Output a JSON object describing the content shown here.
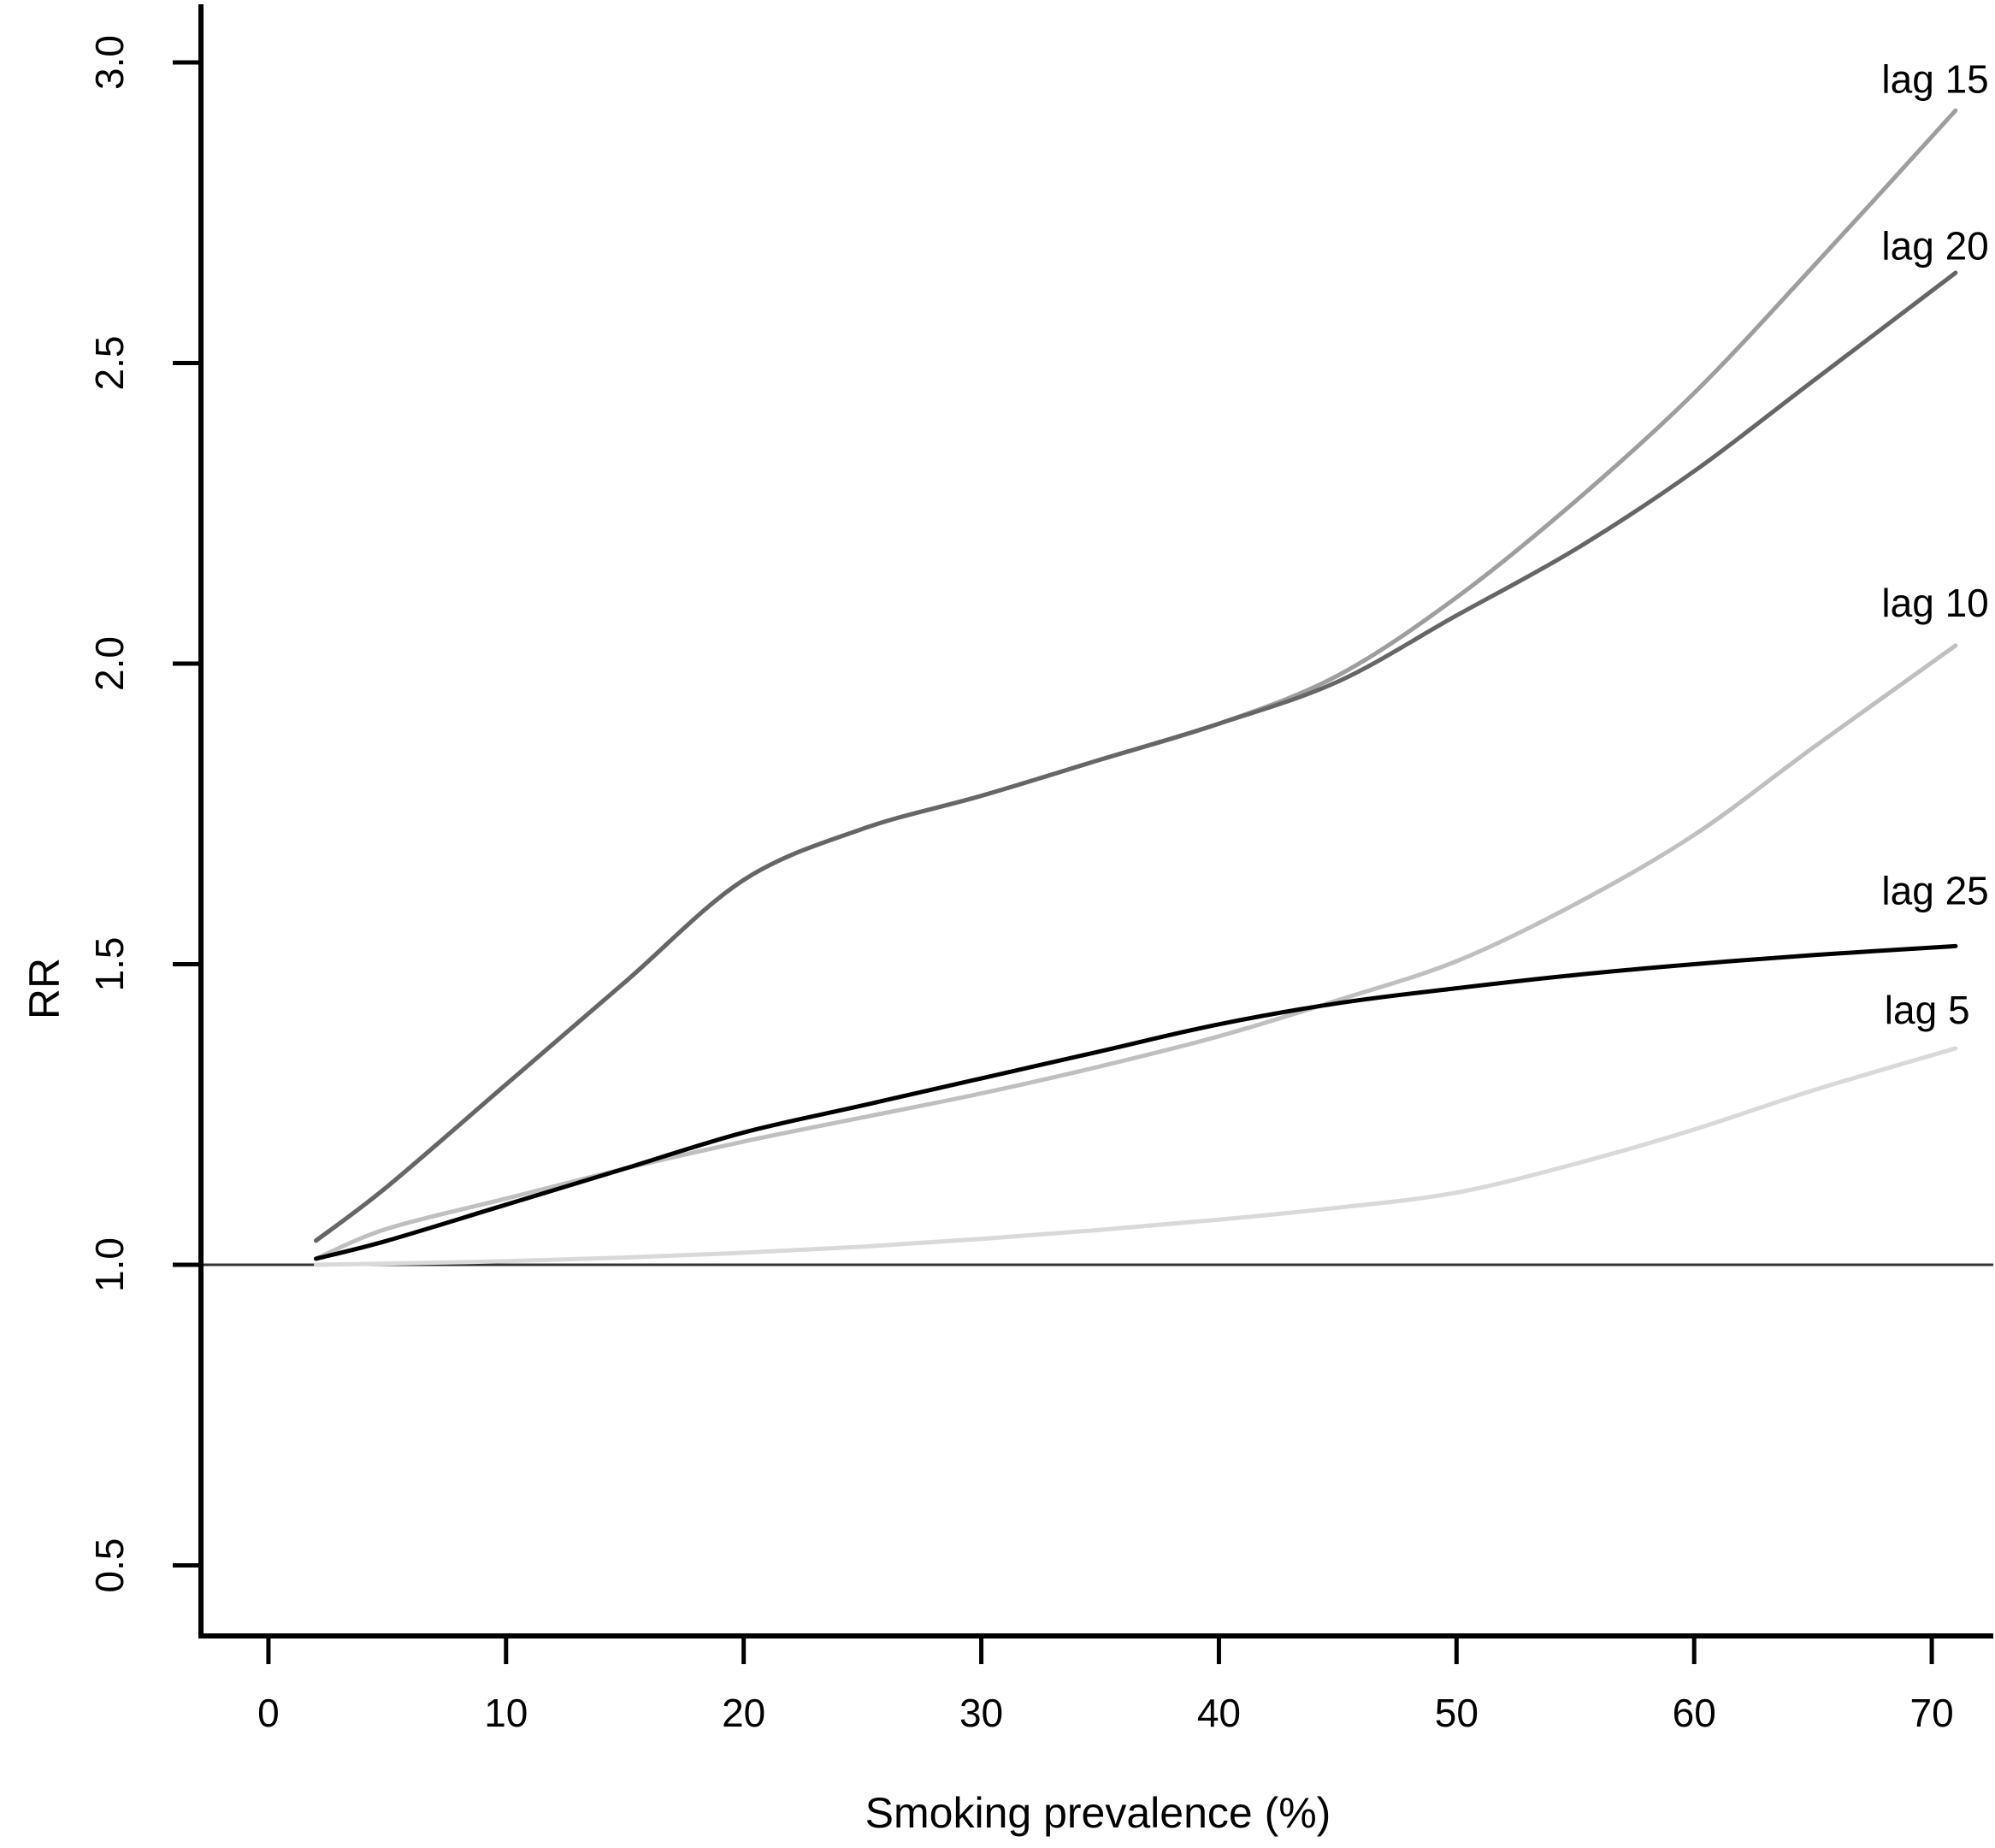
{
  "chart_data": {
    "type": "line",
    "title": "",
    "xlabel": "Smoking prevalence (%)",
    "ylabel": "RR",
    "xlim": [
      -2.84,
      72.66
    ],
    "ylim": [
      0.3826,
      3.1038
    ],
    "grid": false,
    "legend_position": "right-end-direct-labels",
    "x_tick_values": [
      0,
      10,
      20,
      30,
      40,
      50,
      60,
      70
    ],
    "x_tick_labels": [
      "0",
      "10",
      "20",
      "30",
      "40",
      "50",
      "60",
      "70"
    ],
    "y_tick_values": [
      0.5,
      1.0,
      1.5,
      2.0,
      2.5,
      3.0
    ],
    "y_tick_labels": [
      "0.5",
      "1.0",
      "1.5",
      "2.0",
      "2.5",
      "3.0"
    ],
    "reference_line_y": 1.0,
    "reference_line_color": "#333333",
    "axis_color": "#000000",
    "x": [
      2,
      5,
      10,
      15,
      20,
      25,
      30,
      35,
      40,
      45,
      50,
      55,
      60,
      65,
      71
    ],
    "series": [
      {
        "name": "lag 5",
        "color": "#d9d9d9",
        "values": [
          1.0,
          1.002,
          1.006,
          1.012,
          1.02,
          1.03,
          1.043,
          1.058,
          1.075,
          1.095,
          1.12,
          1.168,
          1.225,
          1.29,
          1.36
        ],
        "label": {
          "text": "lag 5",
          "x": 71.6,
          "y": 1.424
        }
      },
      {
        "name": "lag 10",
        "color": "#bfbfbf",
        "values": [
          1.01,
          1.06,
          1.11,
          1.16,
          1.205,
          1.245,
          1.285,
          1.33,
          1.38,
          1.44,
          1.505,
          1.6,
          1.715,
          1.86,
          2.03
        ],
        "label": {
          "text": "lag 10",
          "x": 72.4,
          "y": 2.101
        }
      },
      {
        "name": "lag 15",
        "color": "#9e9e9e",
        "values": [
          1.04,
          1.13,
          1.3,
          1.47,
          1.64,
          1.725,
          1.78,
          1.84,
          1.9,
          1.98,
          2.11,
          2.27,
          2.45,
          2.66,
          2.92
        ],
        "label": {
          "text": "lag 15",
          "x": 72.4,
          "y": 2.972
        }
      },
      {
        "name": "lag 20",
        "color": "#666666",
        "values": [
          1.04,
          1.13,
          1.3,
          1.47,
          1.64,
          1.725,
          1.78,
          1.84,
          1.9,
          1.97,
          2.08,
          2.19,
          2.32,
          2.47,
          2.65
        ],
        "label": {
          "text": "lag 20",
          "x": 72.4,
          "y": 2.695
        }
      },
      {
        "name": "lag 25",
        "color": "#000000",
        "values": [
          1.01,
          1.04,
          1.1,
          1.16,
          1.22,
          1.265,
          1.31,
          1.355,
          1.4,
          1.435,
          1.46,
          1.482,
          1.5,
          1.515,
          1.53
        ],
        "label": {
          "text": "lag 25",
          "x": 72.4,
          "y": 1.622
        }
      }
    ]
  },
  "layout_note": "R-style base graphics line plot, direct series labels at right curve ends"
}
